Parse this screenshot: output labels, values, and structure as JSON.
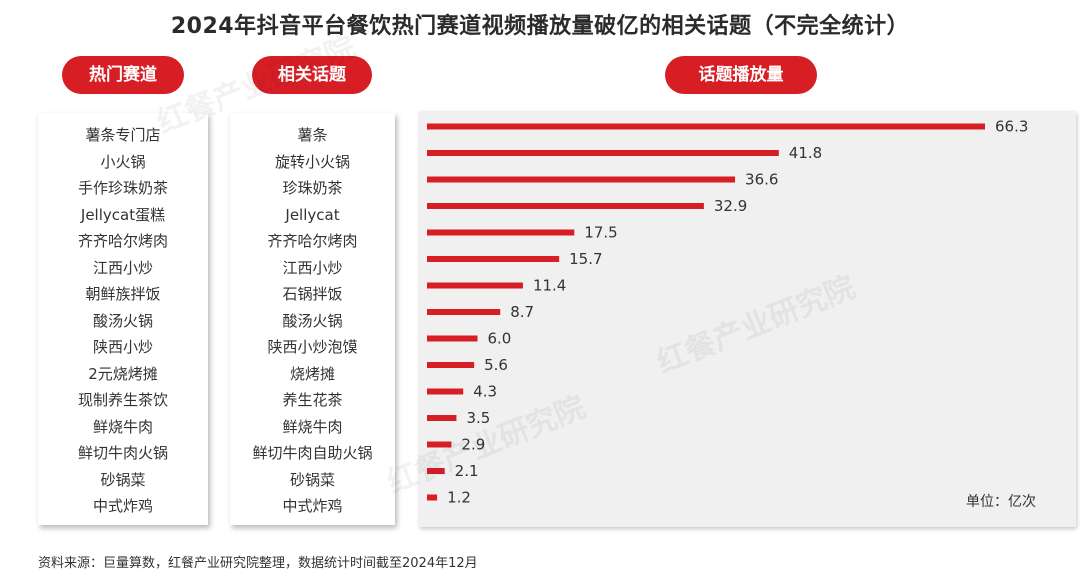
{
  "title": "2024年抖音平台餐饮热门赛道视频播放量破亿的相关话题（不完全统计）",
  "headers": {
    "track": "热门赛道",
    "topic": "相关话题",
    "views": "话题播放量"
  },
  "tracks": [
    "薯条专门店",
    "小火锅",
    "手作珍珠奶茶",
    "Jellycat蛋糕",
    "齐齐哈尔烤肉",
    "江西小炒",
    "朝鲜族拌饭",
    "酸汤火锅",
    "陕西小炒",
    "2元烧烤摊",
    "现制养生茶饮",
    "鲜烧牛肉",
    "鲜切牛肉火锅",
    "砂锅菜",
    "中式炸鸡"
  ],
  "unit_label": "单位：亿次",
  "source": "资料来源：巨量算数，红餐产业研究院整理，数据统计时间截至2024年12月",
  "watermark": "红餐产业研究院",
  "colors": {
    "accent": "#d81e25",
    "chart_bg": "#f0f0f0"
  },
  "chart_data": {
    "type": "bar",
    "orientation": "horizontal",
    "categories": [
      "薯条",
      "旋转小火锅",
      "珍珠奶茶",
      "Jellycat",
      "齐齐哈尔烤肉",
      "江西小炒",
      "石锅拌饭",
      "酸汤火锅",
      "陕西小炒泡馍",
      "烧烤摊",
      "养生花茶",
      "鲜烧牛肉",
      "鲜切牛肉自助火锅",
      "砂锅菜",
      "中式炸鸡"
    ],
    "values": [
      66.3,
      41.8,
      36.6,
      32.9,
      17.5,
      15.7,
      11.4,
      8.7,
      6.0,
      5.6,
      4.3,
      3.5,
      2.9,
      2.1,
      1.2
    ],
    "value_labels": [
      "66.3",
      "41.8",
      "36.6",
      "32.9",
      "17.5",
      "15.7",
      "11.4",
      "8.7",
      "6.0",
      "5.6",
      "4.3",
      "3.5",
      "2.9",
      "2.1",
      "1.2"
    ],
    "title": "话题播放量",
    "unit": "亿次",
    "xlim": [
      0,
      66.3
    ],
    "grid": false,
    "legend": "none"
  }
}
